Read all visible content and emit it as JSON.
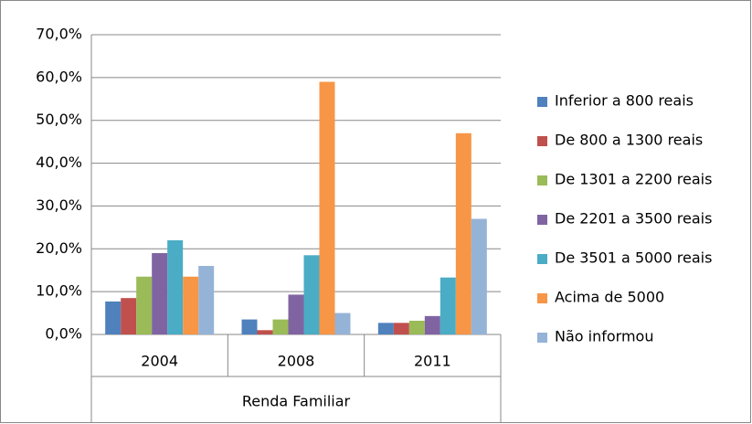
{
  "chart_data": {
    "type": "bar",
    "x_label": "Renda Familiar",
    "categories": [
      "2004",
      "2008",
      "2011"
    ],
    "series": [
      {
        "name": "Inferior a 800 reais",
        "color": "#4f81bd",
        "values": [
          7.7,
          3.5,
          2.7
        ]
      },
      {
        "name": "De 800 a 1300 reais",
        "color": "#c0504d",
        "values": [
          8.5,
          1.0,
          2.7
        ]
      },
      {
        "name": "De 1301 a 2200 reais",
        "color": "#9bbb59",
        "values": [
          13.5,
          3.5,
          3.2
        ]
      },
      {
        "name": "De 2201 a 3500 reais",
        "color": "#8064a2",
        "values": [
          19.0,
          9.3,
          4.3
        ]
      },
      {
        "name": "De 3501 a 5000 reais",
        "color": "#4bacc6",
        "values": [
          22.0,
          18.5,
          13.3
        ]
      },
      {
        "name": "Acima de 5000",
        "color": "#f79646",
        "values": [
          13.5,
          59.0,
          47.0
        ]
      },
      {
        "name": "Não informou",
        "color": "#95b3d7",
        "values": [
          16.0,
          5.0,
          27.0
        ]
      }
    ],
    "ylim": [
      0,
      70
    ],
    "yticks": [
      {
        "value": 0,
        "label": "0,0%"
      },
      {
        "value": 10,
        "label": "10,0%"
      },
      {
        "value": 20,
        "label": "20,0%"
      },
      {
        "value": 30,
        "label": "30,0%"
      },
      {
        "value": 40,
        "label": "40,0%"
      },
      {
        "value": 50,
        "label": "50,0%"
      },
      {
        "value": 60,
        "label": "60,0%"
      },
      {
        "value": 70,
        "label": "70,0%"
      }
    ],
    "grid": true,
    "legend": "right"
  }
}
